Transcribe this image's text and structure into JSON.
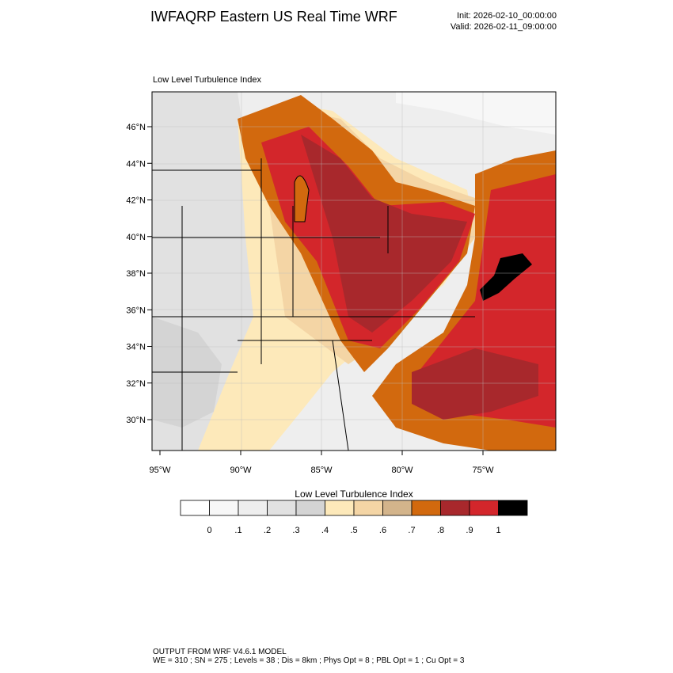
{
  "header": {
    "title": "IWFAQRP Eastern US Real Time WRF",
    "init": "Init: 2026-02-10_00:00:00",
    "valid": "Valid: 2026-02-11_09:00:00"
  },
  "map": {
    "subtitle": "Low Level Turbulence Index",
    "lat_labels": [
      "46°N",
      "44°N",
      "42°N",
      "40°N",
      "38°N",
      "36°N",
      "34°N",
      "32°N",
      "30°N"
    ],
    "lon_labels": [
      "95°W",
      "90°W",
      "85°W",
      "80°W",
      "75°W"
    ]
  },
  "colorbar": {
    "title": "Low Level Turbulence Index",
    "labels": [
      "0",
      ".1",
      ".2",
      ".3",
      ".4",
      ".5",
      ".6",
      ".7",
      ".8",
      ".9",
      "1"
    ],
    "colors": [
      "#ffffff",
      "#f7f7f7",
      "#eeeeee",
      "#e1e1e1",
      "#d4d4d4",
      "#fde9ba",
      "#f4d5a5",
      "#d3b48b",
      "#d2690e",
      "#a8282c",
      "#d3262b",
      "#000000"
    ]
  },
  "footer": {
    "lines": [
      "OUTPUT FROM WRF V4.6.1 MODEL",
      "WE = 310 ; SN = 275 ; Levels = 38 ; Dis = 8km ; Phys Opt = 8 ; PBL Opt = 1 ; Cu Opt = 3"
    ]
  }
}
